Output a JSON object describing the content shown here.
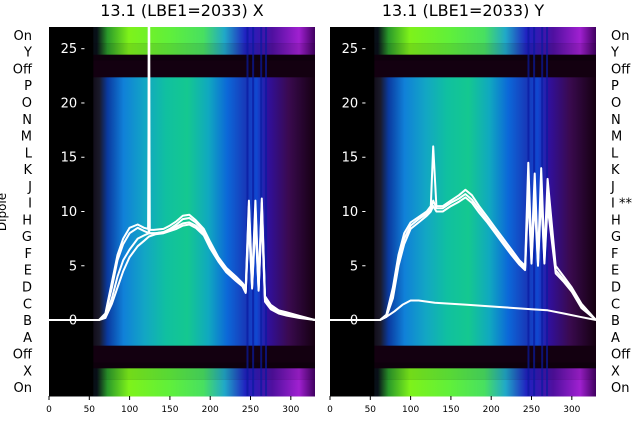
{
  "chart_data": {
    "type": "heatmap",
    "ylabel": "Dipole",
    "row_labels": [
      "On",
      "Y",
      "Off",
      "P",
      "O",
      "N",
      "M",
      "L",
      "K",
      "J",
      "I",
      "H",
      "G",
      "F",
      "E",
      "D",
      "C",
      "B",
      "A",
      "Off",
      "X",
      "On"
    ],
    "xticks": [
      0,
      50,
      100,
      150,
      200,
      250,
      300
    ],
    "xlim": [
      0,
      330
    ],
    "overlay_yticks": [
      0,
      5,
      10,
      15,
      20,
      25
    ],
    "overlay_ylim": [
      -7,
      27
    ],
    "colors": {
      "background": "#ffffff",
      "line": "#ffffff",
      "off_band": "#130010"
    },
    "panels": [
      {
        "title": "13.1 (LBE1=2033) X",
        "right_labels": false,
        "spike_x": 124,
        "series": [
          {
            "x": [
              0,
              62,
              70,
              78,
              85,
              92,
              100,
              110,
              118,
              124,
              132,
              142,
              150,
              158,
              166,
              174,
              182,
              192,
              200,
              210,
              220,
              232,
              240,
              244,
              248,
              252,
              256,
              260,
              264,
              268,
              275,
              285,
              295,
              310,
              330
            ],
            "y": [
              0,
              0,
              0.5,
              3,
              5.5,
              7,
              8,
              8.5,
              8.2,
              8,
              8,
              8.1,
              8.4,
              8.8,
              9.3,
              9.4,
              9,
              8.2,
              7,
              5.6,
              4.6,
              3.8,
              3.3,
              2.8,
              10.5,
              3.2,
              10.3,
              3,
              10.8,
              2,
              1.2,
              0.8,
              0.6,
              0.3,
              0
            ]
          },
          {
            "x": [
              0,
              62,
              70,
              78,
              85,
              92,
              100,
              110,
              118,
              124,
              132,
              142,
              150,
              158,
              166,
              174,
              182,
              192,
              200,
              210,
              220,
              232,
              240,
              244,
              248,
              252,
              256,
              260,
              264,
              268,
              275,
              285,
              295,
              310,
              330
            ],
            "y": [
              0,
              0,
              0.3,
              2,
              4,
              5.5,
              6.5,
              7.5,
              7.8,
              8,
              8,
              8.1,
              8.3,
              8.6,
              8.9,
              9,
              8.7,
              8,
              6.8,
              5.5,
              4.5,
              3.7,
              3.2,
              2.6,
              9.5,
              3,
              9.5,
              2.8,
              10,
              1.8,
              1.1,
              0.7,
              0.5,
              0.3,
              0
            ]
          },
          {
            "x": [
              0,
              62,
              70,
              78,
              85,
              92,
              100,
              110,
              118,
              124,
              132,
              142,
              150,
              158,
              166,
              174,
              182,
              192,
              200,
              210,
              220,
              232,
              240,
              244,
              248,
              252,
              256,
              260,
              264,
              268,
              275,
              285,
              295,
              310,
              330
            ],
            "y": [
              0,
              0,
              0.2,
              1.5,
              3,
              4.5,
              5.8,
              6.8,
              7.3,
              7.7,
              7.9,
              8,
              8.2,
              8.4,
              8.7,
              8.8,
              8.5,
              7.8,
              6.6,
              5.4,
              4.4,
              3.6,
              3.1,
              2.5,
              9,
              2.9,
              9,
              2.7,
              9.6,
              1.7,
              1.0,
              0.6,
              0.4,
              0.2,
              0
            ]
          },
          {
            "x": [
              0,
              62,
              70,
              78,
              85,
              92,
              100,
              110,
              118,
              123,
              124,
              125,
              130,
              142,
              150,
              158,
              166,
              174,
              182,
              192,
              200,
              210,
              220,
              232,
              240,
              244,
              248,
              252,
              256,
              260,
              264,
              268,
              275,
              285,
              295,
              310,
              330
            ],
            "y": [
              0,
              0,
              0.6,
              3.5,
              6,
              7.5,
              8.5,
              8.8,
              8.5,
              8.4,
              28,
              8.3,
              8.3,
              8.4,
              8.7,
              9.1,
              9.6,
              9.7,
              9.2,
              8.4,
              7.2,
              5.8,
              4.8,
              4,
              3.4,
              3,
              11,
              3.4,
              11,
              3.2,
              11.2,
              2.2,
              1.4,
              0.9,
              0.7,
              0.4,
              0
            ]
          }
        ]
      },
      {
        "title": "13.1 (LBE1=2033) Y",
        "right_labels": true,
        "spike_x": null,
        "series": [
          {
            "x": [
              0,
              62,
              70,
              78,
              85,
              92,
              100,
              110,
              120,
              125,
              128,
              132,
              140,
              150,
              160,
              168,
              176,
              185,
              195,
              205,
              215,
              225,
              235,
              242,
              246,
              250,
              254,
              258,
              262,
              266,
              270,
              280,
              290,
              300,
              312,
              330
            ],
            "y": [
              0,
              0,
              0.5,
              3,
              6,
              8,
              9,
              9.5,
              10,
              10.5,
              16,
              10.5,
              10.5,
              11,
              11.5,
              12,
              11.5,
              10.5,
              9.5,
              8.5,
              7.5,
              6.5,
              5.5,
              5,
              14.5,
              6,
              13.5,
              5.5,
              14,
              6,
              13,
              5,
              4,
              3,
              1.5,
              0
            ]
          },
          {
            "x": [
              0,
              62,
              70,
              78,
              85,
              92,
              100,
              110,
              120,
              125,
              128,
              132,
              140,
              150,
              160,
              168,
              176,
              185,
              195,
              205,
              215,
              225,
              235,
              242,
              246,
              250,
              254,
              258,
              262,
              266,
              270,
              280,
              290,
              300,
              312,
              330
            ],
            "y": [
              0,
              0,
              0.4,
              2.5,
              5.5,
              7.5,
              8.7,
              9.3,
              9.8,
              10.2,
              11,
              10.3,
              10.3,
              10.8,
              11.2,
              11.6,
              11.1,
              10.2,
              9.2,
              8.2,
              7.2,
              6.2,
              5.3,
              4.8,
              12.5,
              5.5,
              12,
              5.2,
              12.5,
              5.5,
              11.5,
              4.6,
              3.7,
              2.8,
              1.3,
              0
            ]
          },
          {
            "x": [
              0,
              62,
              70,
              78,
              85,
              92,
              100,
              110,
              120,
              125,
              128,
              132,
              140,
              150,
              160,
              168,
              176,
              185,
              195,
              205,
              215,
              225,
              235,
              242,
              246,
              250,
              254,
              258,
              262,
              266,
              270,
              280,
              290,
              300,
              312,
              330
            ],
            "y": [
              0,
              0,
              0.3,
              2,
              5,
              7,
              8.4,
              9,
              9.6,
              10,
              10.5,
              10,
              10,
              10.5,
              10.9,
              11.3,
              10.8,
              9.9,
              9,
              8,
              7,
              6,
              5.1,
              4.6,
              11.5,
              5.2,
              11,
              5,
              11.5,
              5.2,
              10.5,
              4.3,
              3.5,
              2.6,
              1.1,
              0
            ]
          },
          {
            "x": [
              0,
              62,
              70,
              80,
              90,
              100,
              110,
              130,
              150,
              170,
              190,
              210,
              230,
              250,
              270,
              290,
              310,
              330
            ],
            "y": [
              0,
              0,
              0.3,
              0.8,
              1.4,
              1.8,
              1.8,
              1.6,
              1.5,
              1.4,
              1.3,
              1.2,
              1.1,
              1.0,
              0.9,
              0.6,
              0.3,
              0
            ]
          }
        ]
      }
    ]
  }
}
